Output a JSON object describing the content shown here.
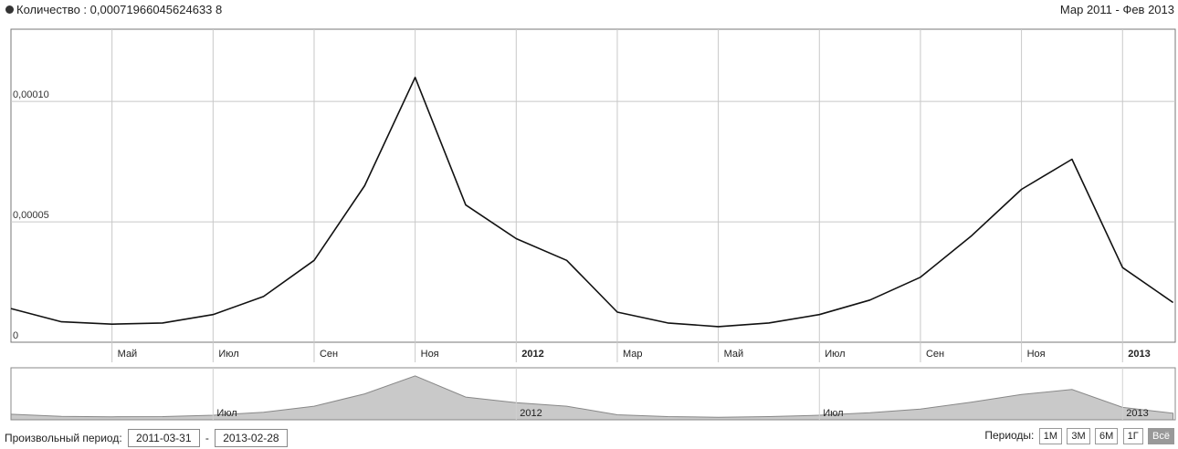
{
  "header": {
    "legend_label": "Количество : 0,00071966045624633 8",
    "date_range": "Мар 2011 - Фев 2013"
  },
  "chart_data": {
    "type": "line",
    "x": [
      "2011-03",
      "2011-04",
      "2011-05",
      "2011-06",
      "2011-07",
      "2011-08",
      "2011-09",
      "2011-10",
      "2011-11",
      "2011-12",
      "2012-01",
      "2012-02",
      "2012-03",
      "2012-04",
      "2012-05",
      "2012-06",
      "2012-07",
      "2012-08",
      "2012-09",
      "2012-10",
      "2012-11",
      "2012-12",
      "2013-01",
      "2013-02"
    ],
    "series": [
      {
        "values": [
          1.4e-05,
          8.5e-06,
          7.5e-06,
          8e-06,
          1.15e-05,
          1.9e-05,
          3.4e-05,
          6.5e-05,
          0.00011,
          5.7e-05,
          4.3e-05,
          3.4e-05,
          1.25e-05,
          8e-06,
          6.5e-06,
          8e-06,
          1.15e-05,
          1.75e-05,
          2.7e-05,
          4.4e-05,
          6.35e-05,
          7.6e-05,
          3.1e-05,
          1.65e-05
        ]
      }
    ],
    "y_ticks": [
      "0",
      "0,00005",
      "0,00010"
    ],
    "x_tick_labels": [
      "Май",
      "Июл",
      "Сен",
      "Ноя",
      "2012",
      "Мар",
      "Май",
      "Июл",
      "Сен",
      "Ноя",
      "2013"
    ],
    "navigator_labels": [
      "Июл",
      "2012",
      "Июл",
      "2013"
    ],
    "grid": true,
    "color": "#111111"
  },
  "bottom": {
    "custom_period_label": "Произвольный период:",
    "date_from": "2011-03-31",
    "date_separator": "-",
    "date_to": "2013-02-28",
    "periods_label": "Периоды:",
    "period_buttons": [
      "1М",
      "3М",
      "6М",
      "1Г",
      "Всё"
    ]
  }
}
